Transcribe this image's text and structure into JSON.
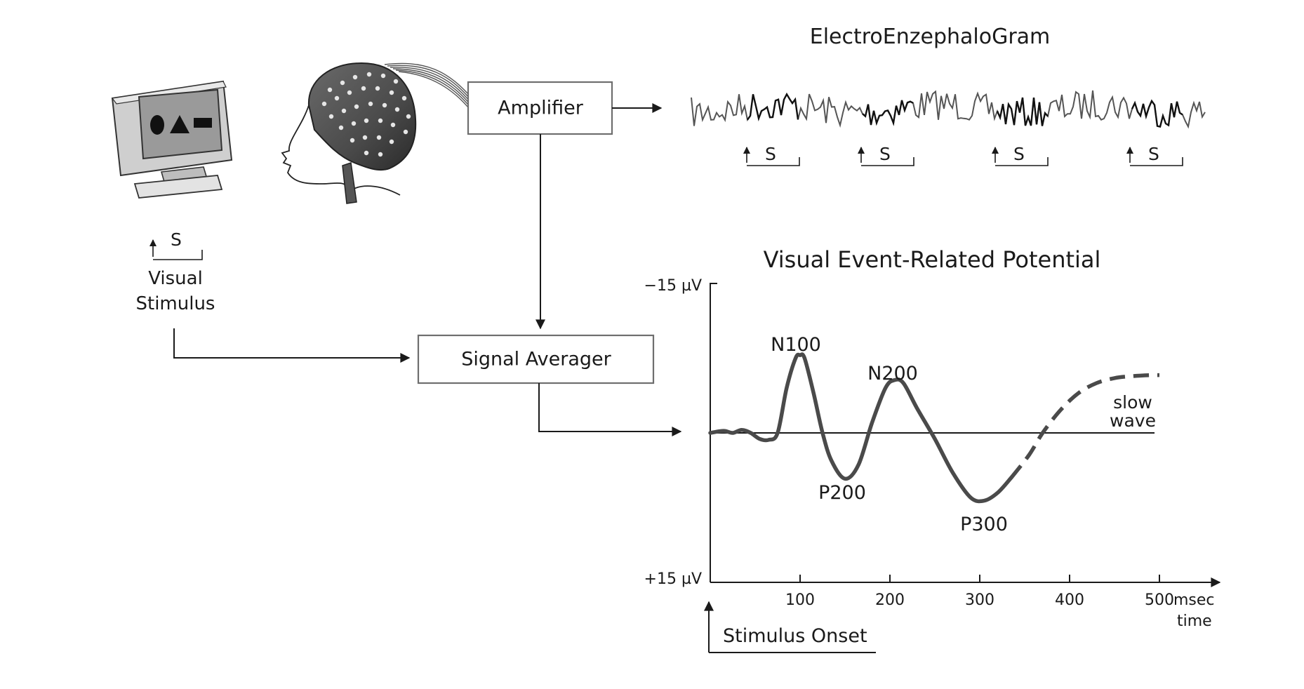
{
  "eeg": {
    "title": "ElectroEnzephaloGram",
    "stimulus_marker": "S"
  },
  "stimulus": {
    "marker": "S",
    "label_line1": "Visual",
    "label_line2": "Stimulus"
  },
  "amplifier": {
    "label": "Amplifier"
  },
  "averager": {
    "label": "Signal Averager"
  },
  "chart_data": {
    "type": "line",
    "title": "Visual Event-Related Potential",
    "y_top_label": "−15 µV",
    "y_bottom_label": "+15 µV",
    "x_ticks": [
      "100",
      "200",
      "300",
      "400",
      "500"
    ],
    "x_unit": "msec",
    "x_label": "time",
    "onset_label": "Stimulus Onset",
    "xlim": [
      0,
      550
    ],
    "ylim": [
      -15,
      15
    ],
    "y_axis_inverted": true,
    "series": [
      {
        "style": "solid",
        "x": [
          0,
          15,
          25,
          35,
          45,
          55,
          65,
          75,
          85,
          95,
          100,
          105,
          115,
          125,
          135,
          150,
          165,
          180,
          195,
          205,
          215,
          230,
          250,
          270,
          290,
          305,
          320,
          335
        ],
        "y": [
          0,
          -0.2,
          0,
          -0.3,
          0,
          0.6,
          0.7,
          0,
          -4.5,
          -7.5,
          -7.8,
          -7.5,
          -4,
          0,
          2.8,
          4.6,
          3.2,
          -1,
          -4.5,
          -5.3,
          -5,
          -2.5,
          0.6,
          4,
          6.5,
          6.8,
          6,
          4.5
        ]
      },
      {
        "style": "dashed",
        "x": [
          335,
          355,
          370,
          390,
          410,
          430,
          450,
          470,
          490,
          500
        ],
        "y": [
          4.5,
          2.2,
          0,
          -2.3,
          -4,
          -5,
          -5.5,
          -5.7,
          -5.8,
          -5.8
        ]
      }
    ],
    "peaks": [
      {
        "label": "N100"
      },
      {
        "label": "P200"
      },
      {
        "label": "N200"
      },
      {
        "label": "P300"
      },
      {
        "label": "slow",
        "label2": "wave"
      }
    ]
  }
}
